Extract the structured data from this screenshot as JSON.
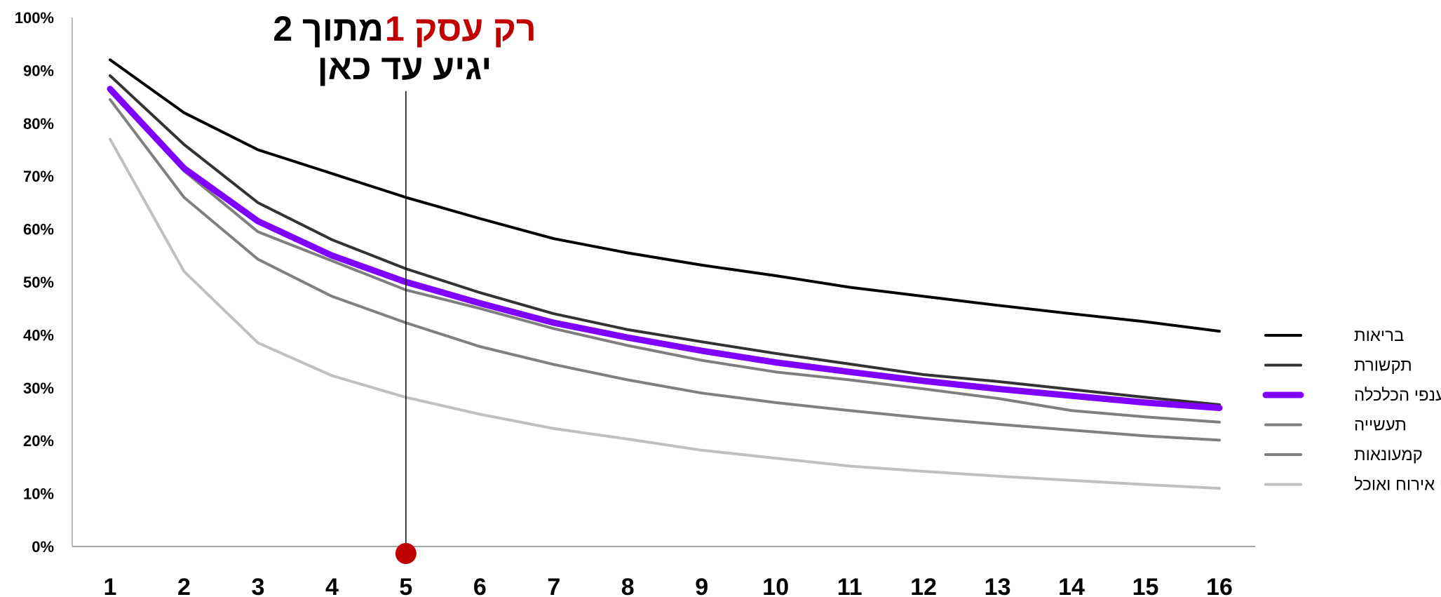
{
  "colors": {
    "highlight": "#C00000",
    "annotation_text": "#000000",
    "axis": "#A6A6A6"
  },
  "annotation": {
    "line1_highlight": "רק עסק 1",
    "line1_rest": "מתוך 2",
    "line2": "יגיע עד כאן",
    "x_value": 5
  },
  "chart_data": {
    "type": "line",
    "x": [
      1,
      2,
      3,
      4,
      5,
      6,
      7,
      8,
      9,
      10,
      11,
      12,
      13,
      14,
      15,
      16
    ],
    "ylim": [
      0,
      100
    ],
    "yticks": [
      0,
      10,
      20,
      30,
      40,
      50,
      60,
      70,
      80,
      90,
      100
    ],
    "ytick_labels": [
      "0%",
      "10%",
      "20%",
      "30%",
      "40%",
      "50%",
      "60%",
      "70%",
      "80%",
      "90%",
      "100%"
    ],
    "xtick_labels": [
      "1",
      "2",
      "3",
      "4",
      "5",
      "6",
      "7",
      "8",
      "9",
      "10",
      "11",
      "12",
      "13",
      "14",
      "15",
      "16"
    ],
    "legend_position": "right",
    "series": [
      {
        "name": "בריאות",
        "color": "#000000",
        "width": 4,
        "values": [
          92,
          82,
          75,
          70.5,
          66,
          62,
          58.2,
          55.5,
          53.2,
          51.2,
          49,
          47.3,
          45.6,
          44,
          42.5,
          40.7
        ]
      },
      {
        "name": "תקשורת",
        "color": "#333333",
        "width": 4,
        "values": [
          89,
          76,
          65,
          58,
          52.5,
          48,
          44,
          41,
          38.7,
          36.5,
          34.5,
          32.5,
          31.2,
          29.7,
          28.2,
          26.8
        ]
      },
      {
        "name": "כלל ענפי הכלכלה",
        "color": "#8000FF",
        "width": 9,
        "values": [
          86.5,
          71.5,
          61.5,
          55,
          50,
          46,
          42.3,
          39.5,
          37,
          34.8,
          33,
          31.3,
          29.8,
          28.5,
          27.2,
          26.2
        ]
      },
      {
        "name": "תעשייה",
        "color": "#7F7F7F",
        "width": 4,
        "values": [
          86,
          71,
          59.5,
          54,
          48.5,
          45,
          41.2,
          38,
          35.2,
          33,
          31.5,
          29.8,
          28,
          25.7,
          24.5,
          23.5
        ]
      },
      {
        "name": "קמעונאות",
        "color": "#808080",
        "width": 4,
        "values": [
          84.5,
          66,
          54.3,
          47.3,
          42.3,
          37.8,
          34.4,
          31.5,
          29,
          27.2,
          25.7,
          24.3,
          23.1,
          22,
          20.9,
          20.1
        ]
      },
      {
        "name": "שירותי אירוח ואוכל",
        "color": "#C0C0C0",
        "width": 4,
        "values": [
          77,
          52,
          38.5,
          32.3,
          28.2,
          25,
          22.3,
          20.3,
          18.2,
          16.7,
          15.2,
          14.2,
          13.3,
          12.5,
          11.7,
          11
        ]
      }
    ]
  }
}
